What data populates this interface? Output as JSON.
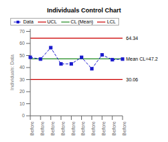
{
  "chart_data": {
    "type": "line",
    "title": "Individuals Control Chart",
    "y_label": "Individuals: Data",
    "categories": [
      "Before",
      "Before",
      "Before",
      "Before",
      "Before",
      "Before",
      "Before",
      "Before",
      "Before",
      "Before"
    ],
    "series": [
      {
        "name": "Data",
        "color": "#1a1acd",
        "marker": "square",
        "line_style": "dashed",
        "values": [
          48.5,
          47.0,
          56.5,
          43.0,
          43.0,
          48.5,
          39.0,
          50.5,
          46.5,
          47.0
        ]
      }
    ],
    "reference_lines": [
      {
        "name": "UCL",
        "value": 64.34,
        "label": "64.34",
        "color": "#cc0000"
      },
      {
        "name": "CL (Mean)",
        "value": 47.2,
        "label": "Mean CL=47.2",
        "color": "#228B22"
      },
      {
        "name": "LCL",
        "value": 30.06,
        "label": "30.06",
        "color": "#cc0000"
      }
    ],
    "legend_order": [
      "Data",
      "UCL",
      "CL (Mean)",
      "LCL"
    ],
    "ylim": [
      0,
      72
    ],
    "yticks": [
      0,
      10,
      20,
      30,
      40,
      50,
      60,
      70
    ],
    "grid": false,
    "legend": "top"
  }
}
